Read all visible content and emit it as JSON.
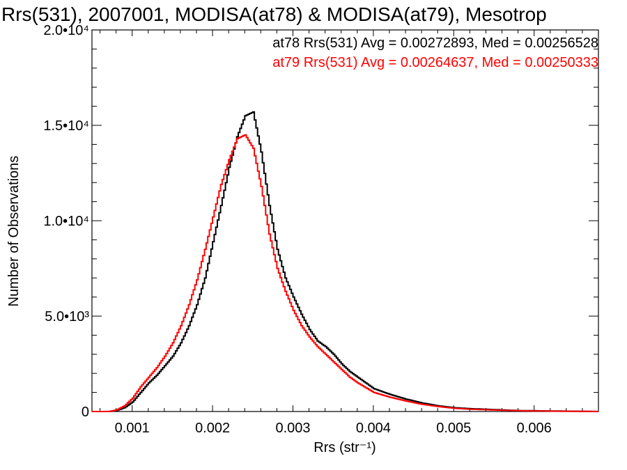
{
  "chart_data": {
    "type": "line",
    "title": "Rrs(531), 2007001, MODISA(at78) & MODISA(at79), Mesotrop",
    "xlabel": "Rrs (str⁻¹)",
    "ylabel": "Number of Observations",
    "xlim": [
      0.0005,
      0.0068
    ],
    "ylim": [
      0,
      20000
    ],
    "x_ticks": [
      {
        "value": 0.001,
        "label": "0.001"
      },
      {
        "value": 0.002,
        "label": "0.002"
      },
      {
        "value": 0.003,
        "label": "0.003"
      },
      {
        "value": 0.004,
        "label": "0.004"
      },
      {
        "value": 0.005,
        "label": "0.005"
      },
      {
        "value": 0.006,
        "label": "0.006"
      }
    ],
    "y_ticks": [
      {
        "value": 0,
        "label": "0"
      },
      {
        "value": 5000,
        "label": "5.0•10³"
      },
      {
        "value": 10000,
        "label": "1.0•10⁴"
      },
      {
        "value": 15000,
        "label": "1.5•10⁴"
      },
      {
        "value": 20000,
        "label": "2.0•10⁴"
      }
    ],
    "annotations": [
      {
        "text": "at78 Rrs(531) Avg = 0.00272893, Med = 0.00256528",
        "color": "#000000"
      },
      {
        "text": "at79 Rrs(531) Avg = 0.00264637, Med = 0.00250333",
        "color": "#ff0000"
      }
    ],
    "series": [
      {
        "color": "#000000",
        "x": [
          0.0005,
          0.0007,
          0.0008,
          0.0009,
          0.001,
          0.0011,
          0.0012,
          0.0013,
          0.0014,
          0.0015,
          0.0016,
          0.0017,
          0.0018,
          0.0019,
          0.002,
          0.0021,
          0.0022,
          0.0023,
          0.0024,
          0.0025,
          0.0026,
          0.0027,
          0.0028,
          0.0029,
          0.003,
          0.0031,
          0.0032,
          0.0033,
          0.0034,
          0.0035,
          0.0036,
          0.0037,
          0.0038,
          0.0039,
          0.004,
          0.0042,
          0.0044,
          0.0046,
          0.0048,
          0.005,
          0.0052,
          0.0055,
          0.0058,
          0.0062,
          0.0068
        ],
        "y": [
          0,
          0,
          50,
          200,
          500,
          1000,
          1500,
          1900,
          2400,
          2900,
          3600,
          4500,
          5600,
          7000,
          8900,
          10800,
          12800,
          14400,
          15500,
          15700,
          13600,
          10800,
          8500,
          7000,
          6000,
          5100,
          4300,
          3700,
          3400,
          3000,
          2500,
          2100,
          1800,
          1500,
          1200,
          900,
          650,
          450,
          300,
          200,
          150,
          100,
          50,
          30,
          0
        ]
      },
      {
        "color": "#ff0000",
        "x": [
          0.0005,
          0.0007,
          0.0008,
          0.0009,
          0.001,
          0.0011,
          0.0012,
          0.0013,
          0.0014,
          0.0015,
          0.0016,
          0.0017,
          0.0018,
          0.0019,
          0.002,
          0.0021,
          0.0022,
          0.0023,
          0.0024,
          0.0025,
          0.0026,
          0.0027,
          0.0028,
          0.0029,
          0.003,
          0.0031,
          0.0032,
          0.0033,
          0.0034,
          0.0035,
          0.0036,
          0.0037,
          0.0038,
          0.0039,
          0.004,
          0.0042,
          0.0044,
          0.0046,
          0.0048,
          0.005,
          0.0052,
          0.0055,
          0.0058,
          0.0062,
          0.0068
        ],
        "y": [
          0,
          0,
          80,
          300,
          700,
          1300,
          1800,
          2300,
          2900,
          3600,
          4500,
          5600,
          6900,
          8500,
          10200,
          11900,
          13200,
          14300,
          14500,
          13800,
          11800,
          9300,
          7500,
          6300,
          5300,
          4500,
          3900,
          3400,
          3000,
          2600,
          2200,
          1800,
          1500,
          1250,
          1000,
          750,
          550,
          380,
          260,
          170,
          120,
          80,
          40,
          20,
          0
        ]
      }
    ]
  }
}
